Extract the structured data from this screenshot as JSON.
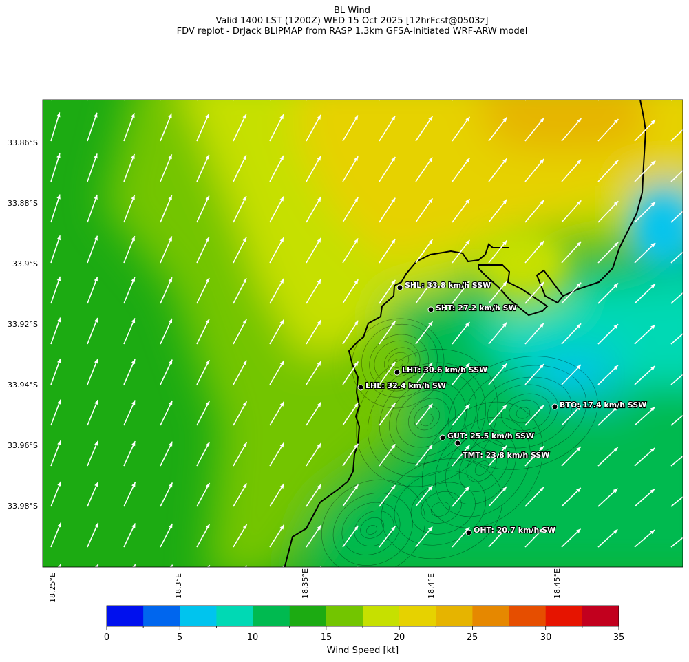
{
  "title": {
    "line1": "BL Wind",
    "line2": "Valid 1400 LST (1200Z) WED 15 Oct 2025 [12hrFcst@0503z]",
    "line3": "FDV replot - DrJack BLIPMAP from RASP 1.3km GFSA-Initiated WRF-ARW model"
  },
  "axes": {
    "lat_ticks": [
      "33.86°S",
      "33.88°S",
      "33.9°S",
      "33.92°S",
      "33.94°S",
      "33.96°S",
      "33.98°S"
    ],
    "lon_ticks": [
      "18.25°E",
      "18.3°E",
      "18.35°E",
      "18.4°E",
      "18.45°E"
    ]
  },
  "stations": [
    {
      "id": "SHL",
      "label": "SHL: 33.8 km/h SSW"
    },
    {
      "id": "SHT",
      "label": "SHT: 27.2 km/h SW"
    },
    {
      "id": "LHT",
      "label": "LHT: 30.6 km/h SSW"
    },
    {
      "id": "LHL",
      "label": "LHL: 32.4 km/h SW"
    },
    {
      "id": "BTO",
      "label": "BTO: 17.4 km/h SSW"
    },
    {
      "id": "GUT",
      "label": "GUT: 25.5 km/h SSW"
    },
    {
      "id": "TMT",
      "label": "TMT: 23.8 km/h SSW"
    },
    {
      "id": "OHT",
      "label": "OHT: 20.7 km/h SW"
    }
  ],
  "colorbar": {
    "label": "Wind Speed [kt]",
    "ticks": [
      "0",
      "5",
      "10",
      "15",
      "20",
      "25",
      "30",
      "35"
    ],
    "colors": [
      "#0010ee",
      "#0066ee",
      "#00c4ee",
      "#00d9b4",
      "#00ba50",
      "#1cab12",
      "#73c500",
      "#c6e000",
      "#e6d200",
      "#e6b400",
      "#e68800",
      "#e64e00",
      "#e61400",
      "#c2001e"
    ]
  }
}
